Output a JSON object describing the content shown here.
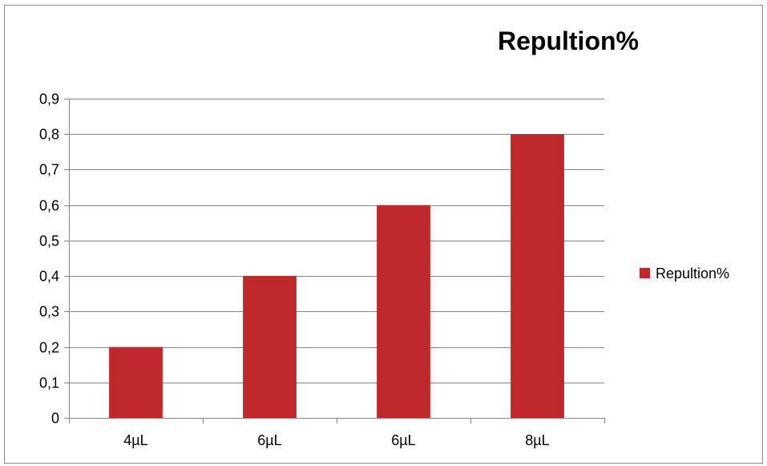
{
  "chart_data": {
    "type": "bar",
    "title": "Repultion%",
    "categories": [
      "4µL",
      "6µL",
      "6µL",
      "8µL"
    ],
    "series": [
      {
        "name": "Repultion%",
        "values": [
          0.2,
          0.4,
          0.6,
          0.8
        ],
        "color": "#c0292c"
      }
    ],
    "ylim": [
      0,
      0.9
    ],
    "yticks": [
      0,
      0.1,
      0.2,
      0.3,
      0.4,
      0.5,
      0.6,
      0.7,
      0.8,
      0.9
    ],
    "ytick_labels": [
      "0",
      "0,1",
      "0,2",
      "0,3",
      "0,4",
      "0,5",
      "0,6",
      "0,7",
      "0,8",
      "0,9"
    ],
    "grid": true,
    "legend_position": "right",
    "gridline_color": "#868686",
    "axis_color": "#868686"
  }
}
